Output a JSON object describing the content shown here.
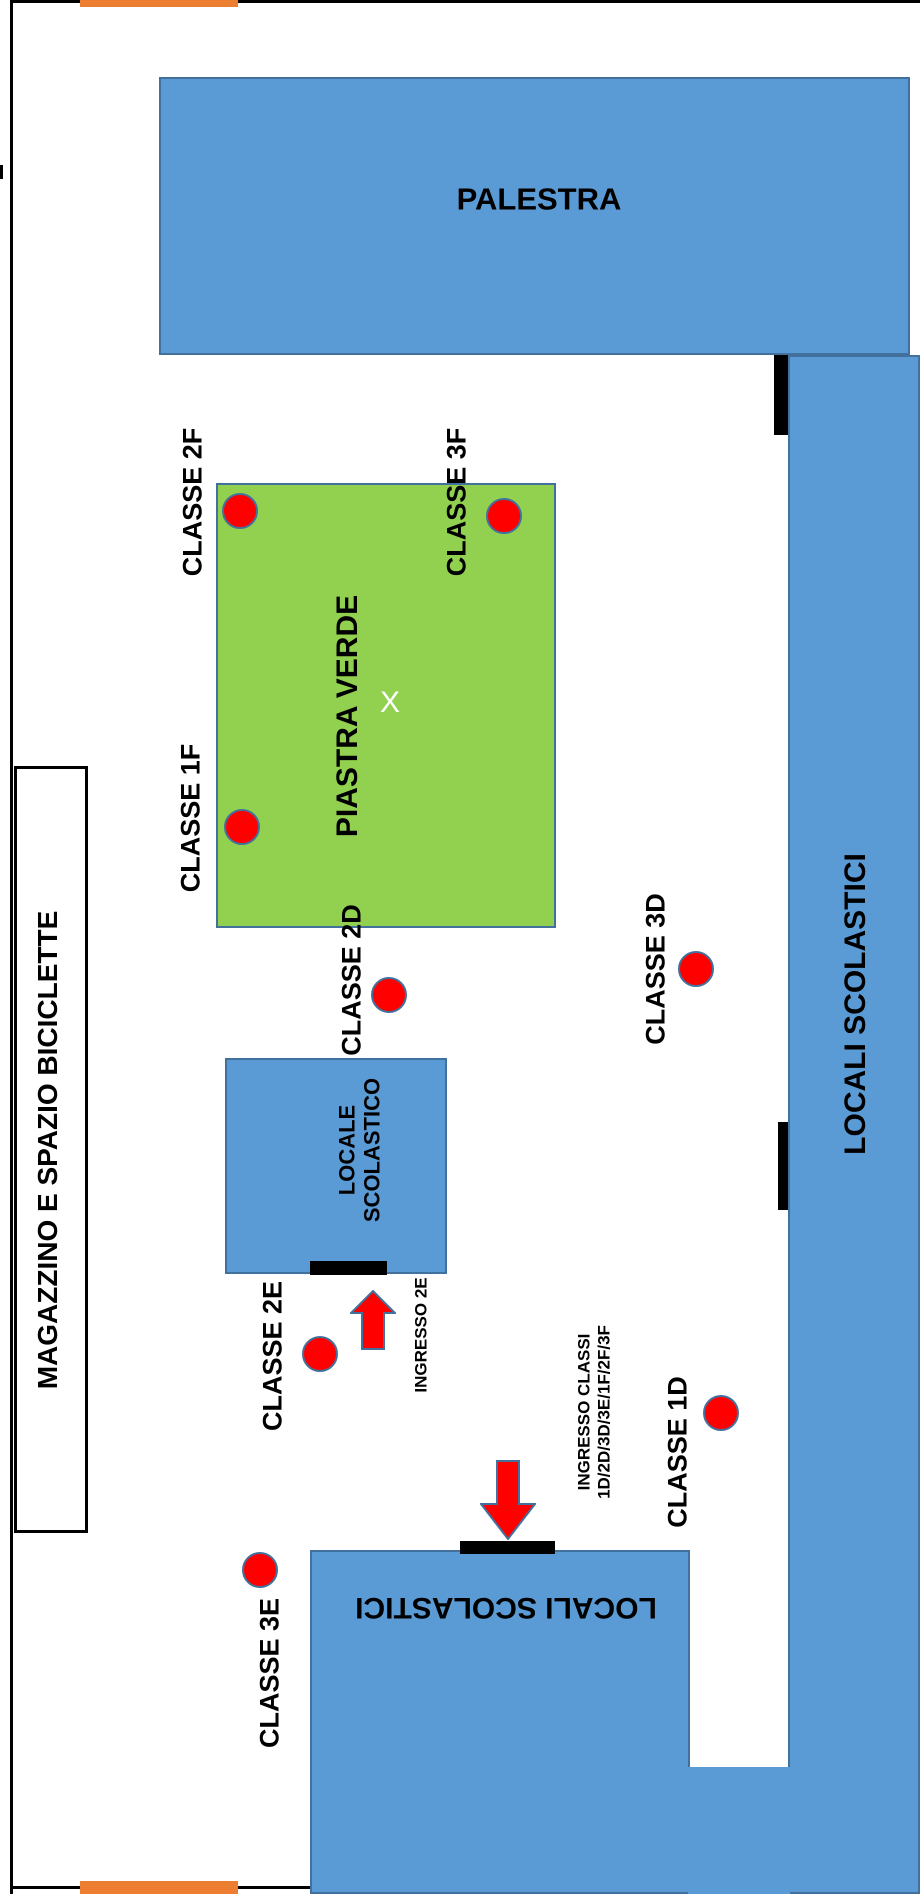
{
  "areas": {
    "palestra": "PALESTRA",
    "piastra": "PIASTRA VERDE",
    "piastra_mark": "X",
    "locali_right": "LOCALI SCOLASTICI",
    "locali_bottom": "LOCALI SCOLASTICI",
    "locale_line1": "LOCALE",
    "locale_line2": "SCOLASTICO",
    "magazzino": "MAGAZZINO E SPAZIO BICICLETTE"
  },
  "classes": {
    "c2f": "CLASSE 2F",
    "c3f": "CLASSE 3F",
    "c1f": "CLASSE 1F",
    "c2d": "CLASSE 2D",
    "c3d": "CLASSE 3D",
    "c2e": "CLASSE 2E",
    "c1d": "CLASSE 1D",
    "c3e": "CLASSE 3E"
  },
  "entrances": {
    "ingresso_2e": "INGRESSO 2E",
    "ingresso_classi_line1": "INGRESSO CLASSI",
    "ingresso_classi_line2": "1D/2D/3D/3E/1F/2F/3F"
  },
  "colors": {
    "building": "#5b9bd5",
    "green_area": "#92d050",
    "meeting_point": "#ff0000",
    "gate_orange": "#ed7d31",
    "gate_yellow": "#ffc000"
  }
}
